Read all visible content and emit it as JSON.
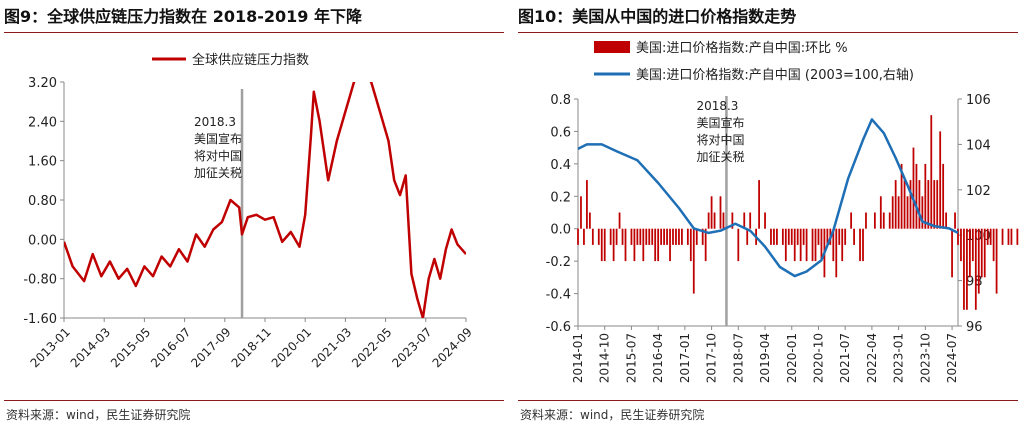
{
  "left": {
    "title": "图9：全球供应链压力指数在 2018-2019 年下降",
    "source": "资料来源：wind，民生证券研究院",
    "annotation": [
      "2018.3",
      "美国宣布",
      "将对中国",
      "加征关税"
    ]
  },
  "right": {
    "title": "图10：美国从中国的进口价格指数走势",
    "source": "资料来源：wind，民生证券研究院",
    "annotation": [
      "2018.3",
      "美国宣布",
      "将对中国",
      "加征关税"
    ]
  },
  "colors": {
    "line_red": "#c00000",
    "bar_red": "#c00000",
    "line_blue": "#1e6fb5",
    "marker_gray": "#a0a0a0"
  },
  "chart_data": [
    {
      "type": "line",
      "legend": [
        "全球供应链压力指数"
      ],
      "legend_position": "top-center",
      "x_ticks": [
        "2013-01",
        "2014-03",
        "2015-05",
        "2016-07",
        "2017-09",
        "2018-11",
        "2020-01",
        "2021-03",
        "2022-05",
        "2023-07",
        "2024-09"
      ],
      "y_ticks": [
        "3.20",
        "2.40",
        "1.60",
        "0.80",
        "0.00",
        "-0.80",
        "-1.60"
      ],
      "ylim": [
        -1.6,
        3.2
      ],
      "x_range": [
        "2013-01",
        "2024-09"
      ],
      "marker_line": "2018-03",
      "series": [
        {
          "name": "全球供应链压力指数",
          "x": [
            "2013-01",
            "2013-04",
            "2013-08",
            "2013-11",
            "2014-02",
            "2014-05",
            "2014-08",
            "2014-11",
            "2015-02",
            "2015-05",
            "2015-08",
            "2015-11",
            "2016-02",
            "2016-05",
            "2016-08",
            "2016-11",
            "2017-02",
            "2017-05",
            "2017-08",
            "2017-11",
            "2018-02",
            "2018-03",
            "2018-05",
            "2018-08",
            "2018-11",
            "2019-02",
            "2019-05",
            "2019-08",
            "2019-11",
            "2020-01",
            "2020-03",
            "2020-04",
            "2020-06",
            "2020-09",
            "2020-12",
            "2021-03",
            "2021-06",
            "2021-09",
            "2021-12",
            "2022-03",
            "2022-06",
            "2022-08",
            "2022-10",
            "2022-12",
            "2023-02",
            "2023-04",
            "2023-06",
            "2023-08",
            "2023-10",
            "2023-12",
            "2024-02",
            "2024-04",
            "2024-06",
            "2024-09"
          ],
          "y": [
            -0.05,
            -0.55,
            -0.85,
            -0.3,
            -0.75,
            -0.45,
            -0.8,
            -0.6,
            -0.95,
            -0.55,
            -0.75,
            -0.35,
            -0.55,
            -0.2,
            -0.45,
            0.1,
            -0.15,
            0.2,
            0.35,
            0.8,
            0.65,
            0.1,
            0.45,
            0.5,
            0.4,
            0.45,
            -0.05,
            0.15,
            -0.15,
            0.5,
            2.1,
            3.0,
            2.4,
            1.2,
            2.0,
            2.6,
            3.2,
            3.4,
            3.2,
            2.6,
            2.0,
            1.2,
            0.9,
            1.3,
            -0.7,
            -1.2,
            -1.6,
            -0.8,
            -0.4,
            -0.8,
            -0.2,
            0.2,
            -0.1,
            -0.3
          ]
        }
      ]
    },
    {
      "type": "bar+line",
      "legend": [
        "美国:进口价格指数:产自中国:环比 %",
        "美国:进口价格指数:产自中国 (2003=100,右轴)"
      ],
      "legend_position": "top-center",
      "x_ticks": [
        "2014-01",
        "2014-10",
        "2015-07",
        "2016-04",
        "2017-01",
        "2017-10",
        "2018-07",
        "2019-04",
        "2020-01",
        "2020-10",
        "2021-07",
        "2022-04",
        "2023-01",
        "2023-10",
        "2024-07"
      ],
      "y_left_ticks": [
        "0.8",
        "0.6",
        "0.4",
        "0.2",
        "0.0",
        "-0.2",
        "-0.4",
        "-0.6"
      ],
      "y_right_ticks": [
        "106",
        "104",
        "102",
        "100",
        "98",
        "96"
      ],
      "ylim_left": [
        -0.6,
        0.8
      ],
      "ylim_right": [
        96,
        106
      ],
      "x_range": [
        "2014-01",
        "2024-09"
      ],
      "marker_line": "2018-03",
      "series": [
        {
          "name": "美国:进口价格指数:产自中国:环比 %",
          "type": "bar",
          "axis": "left",
          "x_start": "2014-01",
          "values": [
            -0.1,
            0.2,
            -0.1,
            0.3,
            0.1,
            -0.1,
            0.0,
            -0.1,
            -0.2,
            -0.2,
            0.0,
            -0.1,
            -0.2,
            -0.1,
            0.1,
            -0.1,
            -0.2,
            0.0,
            -0.1,
            -0.2,
            -0.1,
            -0.1,
            -0.2,
            -0.1,
            -0.1,
            -0.1,
            -0.2,
            -0.2,
            -0.1,
            -0.1,
            -0.1,
            -0.2,
            -0.1,
            -0.1,
            -0.1,
            -0.1,
            0.0,
            -0.1,
            -0.2,
            -0.4,
            -0.1,
            0.0,
            -0.1,
            -0.2,
            0.1,
            0.2,
            0.1,
            0.0,
            0.2,
            0.1,
            -0.1,
            0.0,
            0.1,
            0.0,
            -0.2,
            0.0,
            0.1,
            -0.1,
            0.1,
            0.0,
            -0.1,
            0.3,
            0.0,
            0.1,
            0.0,
            -0.1,
            -0.1,
            -0.1,
            0.0,
            -0.1,
            -0.2,
            -0.1,
            -0.1,
            -0.2,
            -0.1,
            -0.2,
            -0.1,
            -0.2,
            0.0,
            -0.2,
            -0.2,
            -0.1,
            -0.2,
            -0.3,
            -0.1,
            -0.1,
            -0.2,
            -0.3,
            -0.1,
            -0.2,
            -0.1,
            0.0,
            0.1,
            -0.1,
            0.0,
            -0.2,
            -0.2,
            0.1,
            0.0,
            0.0,
            0.1,
            0.0,
            0.2,
            0.1,
            0.0,
            0.1,
            0.2,
            0.3,
            0.2,
            0.4,
            0.3,
            0.2,
            0.3,
            0.5,
            0.4,
            0.3,
            0.2,
            0.4,
            0.3,
            0.7,
            0.3,
            0.3,
            0.6,
            0.4,
            0.1,
            0.0,
            -0.3,
            0.1,
            -0.1,
            -0.2,
            -0.5,
            -0.5,
            -0.3,
            -0.2,
            -0.5,
            -0.4,
            -0.3,
            -0.3,
            -0.1,
            -0.1,
            -0.2,
            -0.4,
            0.0,
            -0.1,
            0.0,
            -0.1,
            -0.1,
            0.0,
            -0.1,
            0.0
          ]
        },
        {
          "name": "美国:进口价格指数:产自中国 (2003=100,右轴)",
          "type": "line",
          "axis": "right",
          "x": [
            "2014-01",
            "2014-04",
            "2014-09",
            "2015-02",
            "2015-09",
            "2016-04",
            "2016-11",
            "2017-04",
            "2017-09",
            "2018-01",
            "2018-06",
            "2018-11",
            "2019-04",
            "2019-09",
            "2020-02",
            "2020-06",
            "2020-11",
            "2021-03",
            "2021-08",
            "2022-01",
            "2022-04",
            "2022-08",
            "2022-12",
            "2023-04",
            "2023-09",
            "2024-01",
            "2024-06",
            "2024-09"
          ],
          "y": [
            103.8,
            104.0,
            104.0,
            103.7,
            103.3,
            102.3,
            101.2,
            100.3,
            100.1,
            100.2,
            100.5,
            100.2,
            99.5,
            98.6,
            98.2,
            98.4,
            98.9,
            100.2,
            102.5,
            104.2,
            105.1,
            104.5,
            103.4,
            102.2,
            100.6,
            100.4,
            100.3,
            100.1
          ]
        }
      ]
    }
  ]
}
